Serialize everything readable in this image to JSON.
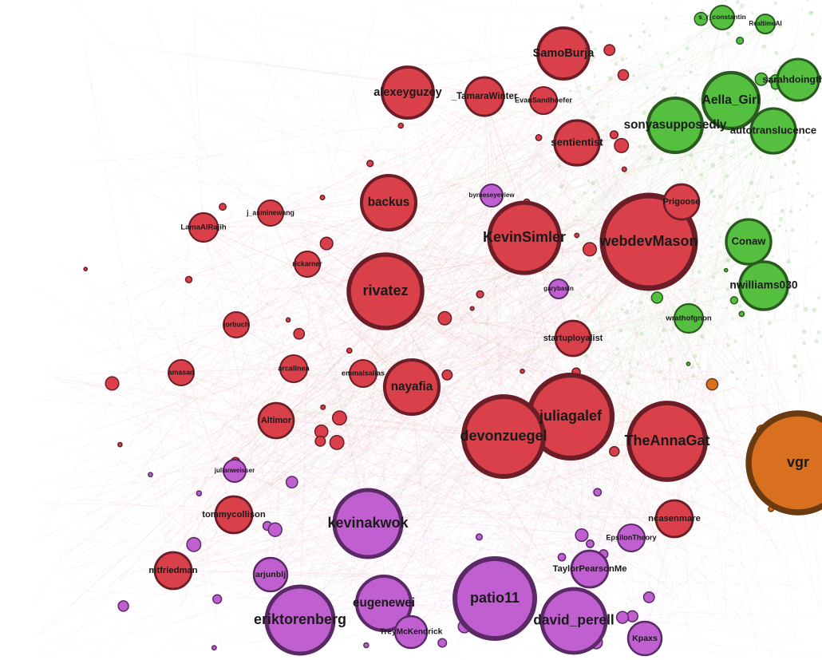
{
  "nodes": [
    {
      "label": "webdevMason"
    },
    {
      "label": "KevinSimler"
    },
    {
      "label": "rivatez"
    },
    {
      "label": "juliagalef"
    },
    {
      "label": "devonzuegel"
    },
    {
      "label": "TheAnnaGat"
    },
    {
      "label": "nayafia"
    },
    {
      "label": "backus"
    },
    {
      "label": "SamoBurja"
    },
    {
      "label": "alexeyguzey"
    },
    {
      "label": "_TamaraWinter"
    },
    {
      "label": "sentientist"
    },
    {
      "label": "Prigoose"
    },
    {
      "label": "startuployalist"
    },
    {
      "label": "Altimor"
    },
    {
      "label": "tommycollison"
    },
    {
      "label": "mtfriedman"
    },
    {
      "label": "LamaAlRajih"
    },
    {
      "label": "ncasenmare"
    },
    {
      "label": "EvanSandhoefer"
    },
    {
      "label": "amasad"
    },
    {
      "label": "arcalinea"
    },
    {
      "label": "emmalsalias"
    },
    {
      "label": "j_asminewang"
    },
    {
      "label": "rickarner"
    },
    {
      "label": "jorbuch"
    },
    {
      "label": "patio11"
    },
    {
      "label": "kevinakwok"
    },
    {
      "label": "eriktorenberg"
    },
    {
      "label": "eugenewei"
    },
    {
      "label": "david_perell"
    },
    {
      "label": "TaylorPearsonMe"
    },
    {
      "label": "TreyMcKendrick"
    },
    {
      "label": "arjunblj"
    },
    {
      "label": "julianweisser"
    },
    {
      "label": "Kpaxs"
    },
    {
      "label": "EpsilonTheory"
    },
    {
      "label": "byrneseyeview"
    },
    {
      "label": "garybasin"
    },
    {
      "label": "vgr"
    },
    {
      "label": "Aella_Girl"
    },
    {
      "label": "sonyasupposedly"
    },
    {
      "label": "autotranslucence"
    },
    {
      "label": "sarahdoingthin"
    },
    {
      "label": "Conaw"
    },
    {
      "label": "nwilliams030"
    },
    {
      "label": "s_r_constantin"
    },
    {
      "label": "wrathofgnon"
    },
    {
      "label": "RealtimeAI"
    }
  ]
}
